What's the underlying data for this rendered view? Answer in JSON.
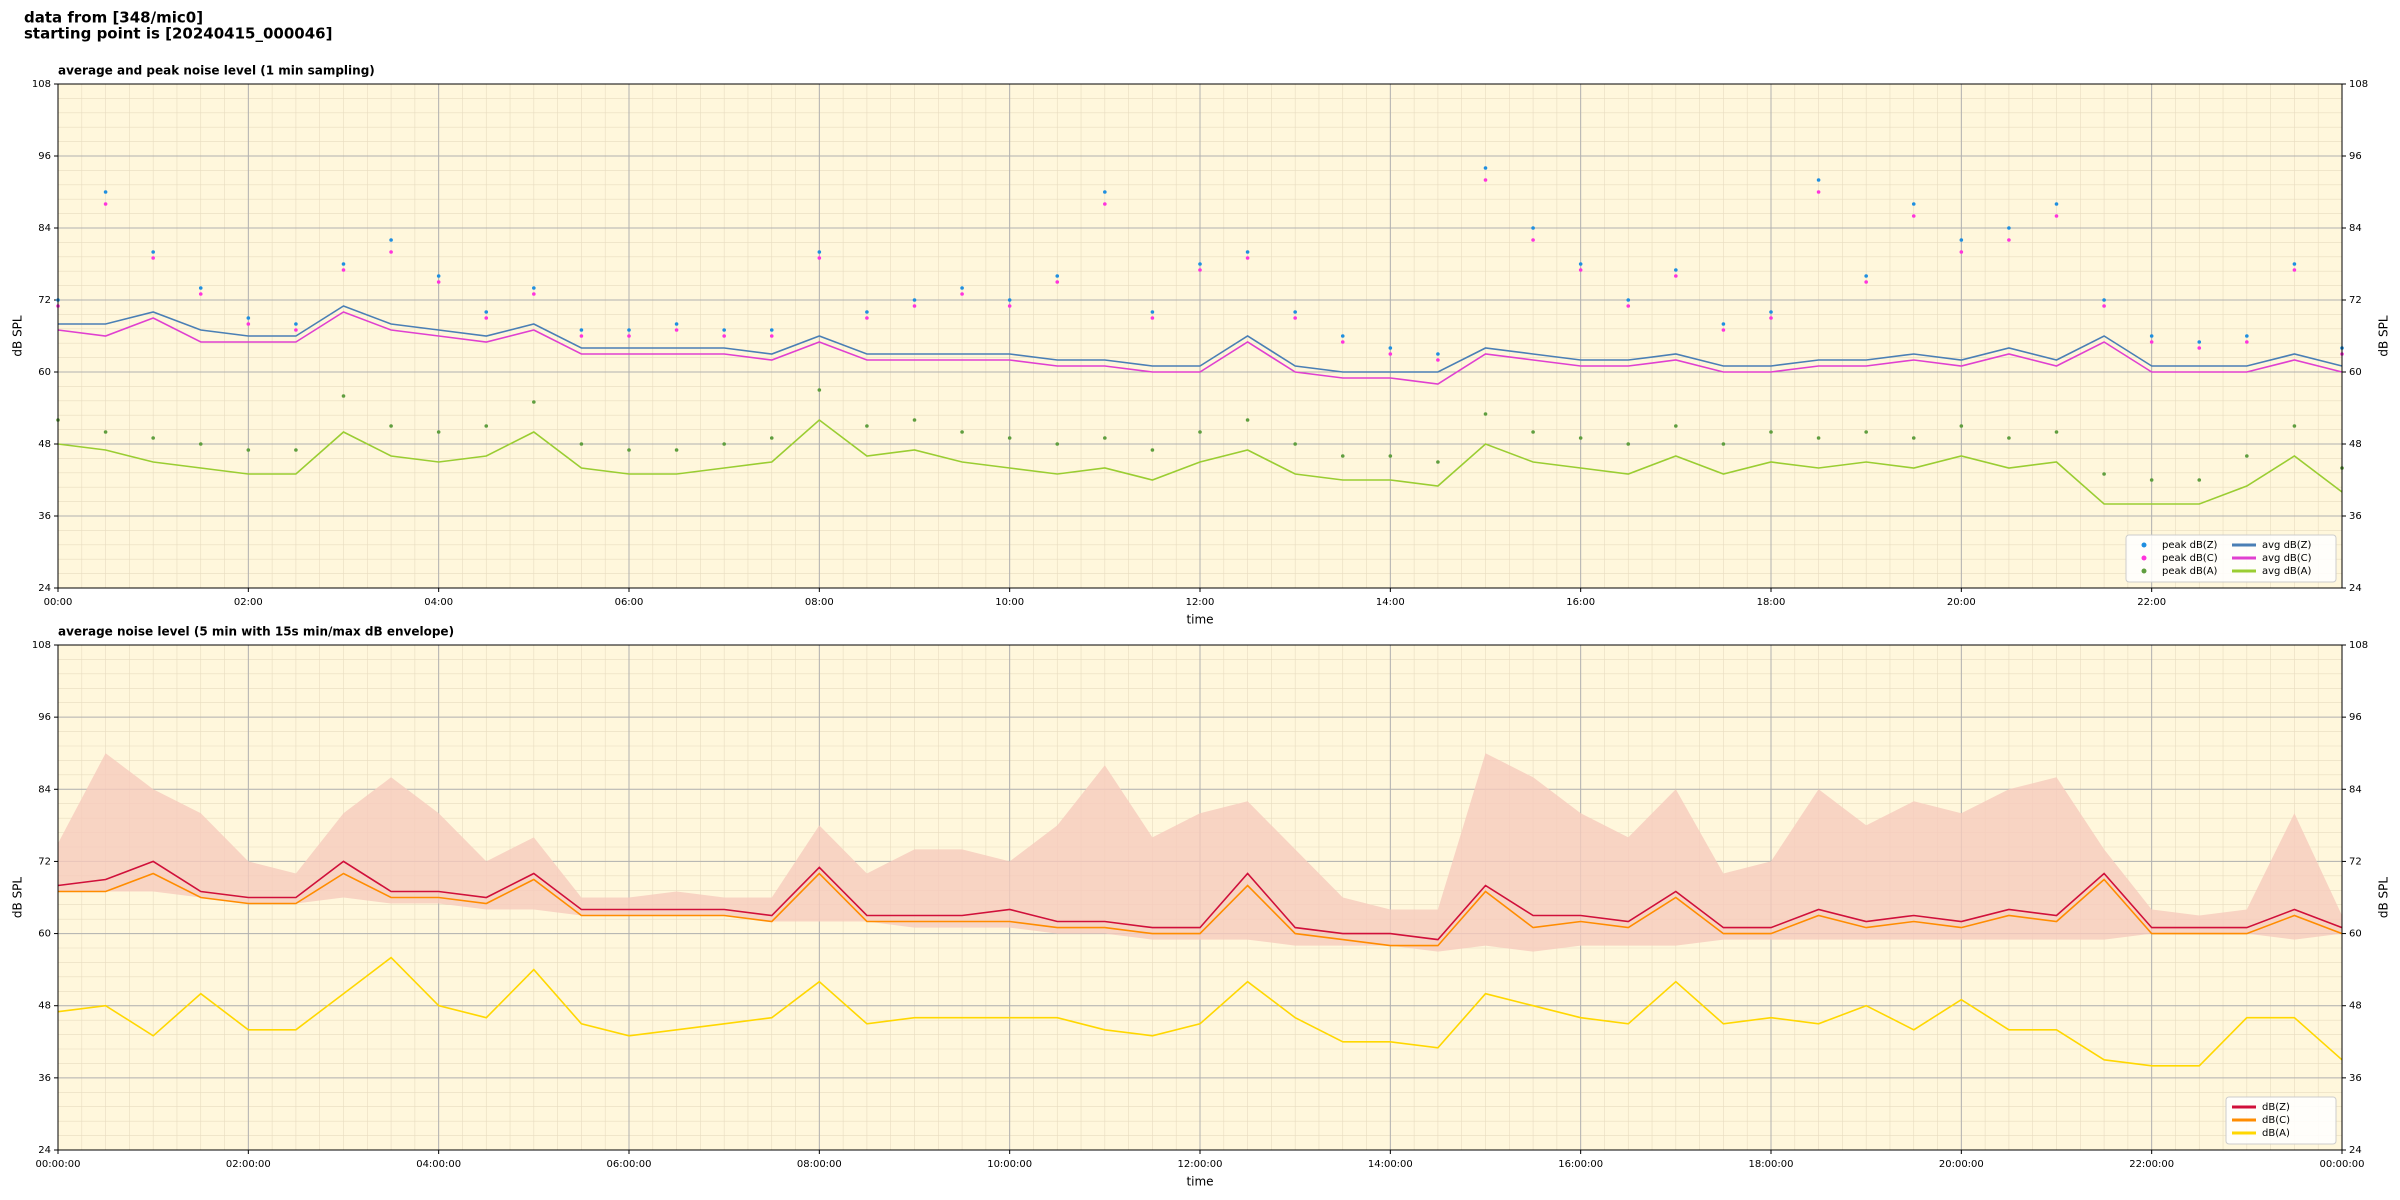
{
  "header": {
    "lines": [
      "data from [348/mic0]",
      "starting point is [20240415_000046]"
    ]
  },
  "chart_data": [
    {
      "type": "line",
      "title": "average and peak noise level (1 min sampling)",
      "x_label": "time",
      "y_label": "dB SPL",
      "xlim": [
        0,
        24
      ],
      "ylim": [
        24,
        108
      ],
      "xticks": [
        {
          "value": 0,
          "label": "00:00"
        },
        {
          "value": 2,
          "label": "02:00"
        },
        {
          "value": 4,
          "label": "04:00"
        },
        {
          "value": 6,
          "label": "06:00"
        },
        {
          "value": 8,
          "label": "08:00"
        },
        {
          "value": 10,
          "label": "10:00"
        },
        {
          "value": 12,
          "label": "12:00"
        },
        {
          "value": 14,
          "label": "14:00"
        },
        {
          "value": 16,
          "label": "16:00"
        },
        {
          "value": 18,
          "label": "18:00"
        },
        {
          "value": 20,
          "label": "20:00"
        },
        {
          "value": 22,
          "label": "22:00"
        }
      ],
      "yticks": [
        24,
        36,
        48,
        60,
        72,
        84,
        96,
        108
      ],
      "grid": true,
      "minor_grid": true,
      "background": "#fff7dc",
      "legend": "lower right",
      "legend_columns": 2,
      "x": [
        0,
        0.5,
        1,
        1.5,
        2,
        2.5,
        3,
        3.5,
        4,
        4.5,
        5,
        5.5,
        6,
        6.5,
        7,
        7.5,
        8,
        8.5,
        9,
        9.5,
        10,
        10.5,
        11,
        11.5,
        12,
        12.5,
        13,
        13.5,
        14,
        14.5,
        15,
        15.5,
        16,
        16.5,
        17,
        17.5,
        18,
        18.5,
        19,
        19.5,
        20,
        20.5,
        21,
        21.5,
        22,
        22.5,
        23,
        23.5,
        24
      ],
      "series": [
        {
          "name": "peak dB(Z)",
          "color": "#1f8fe0",
          "marker": "dot",
          "values": [
            72,
            90,
            80,
            74,
            69,
            68,
            78,
            82,
            76,
            70,
            74,
            67,
            67,
            68,
            67,
            67,
            80,
            70,
            72,
            74,
            72,
            76,
            90,
            70,
            78,
            80,
            70,
            66,
            64,
            63,
            94,
            84,
            78,
            72,
            77,
            68,
            70,
            92,
            76,
            88,
            82,
            84,
            88,
            72,
            66,
            65,
            66,
            78,
            64
          ]
        },
        {
          "name": "peak dB(C)",
          "color": "#ff33dd",
          "marker": "dot",
          "values": [
            71,
            88,
            79,
            73,
            68,
            67,
            77,
            80,
            75,
            69,
            73,
            66,
            66,
            67,
            66,
            66,
            79,
            69,
            71,
            73,
            71,
            75,
            88,
            69,
            77,
            79,
            69,
            65,
            63,
            62,
            92,
            82,
            77,
            71,
            76,
            67,
            69,
            90,
            75,
            86,
            80,
            82,
            86,
            71,
            65,
            64,
            65,
            77,
            63
          ]
        },
        {
          "name": "peak dB(A)",
          "color": "#5f9e3f",
          "marker": "dot",
          "values": [
            52,
            50,
            49,
            48,
            47,
            47,
            56,
            51,
            50,
            51,
            55,
            48,
            47,
            47,
            48,
            49,
            57,
            51,
            52,
            50,
            49,
            48,
            49,
            47,
            50,
            52,
            48,
            46,
            46,
            45,
            53,
            50,
            49,
            48,
            51,
            48,
            50,
            49,
            50,
            49,
            51,
            49,
            50,
            43,
            42,
            42,
            46,
            51,
            44
          ]
        },
        {
          "name": "avg dB(Z)",
          "color": "#4a7fb5",
          "marker": "line",
          "values": [
            68,
            68,
            70,
            67,
            66,
            66,
            71,
            68,
            67,
            66,
            68,
            64,
            64,
            64,
            64,
            63,
            66,
            63,
            63,
            63,
            63,
            62,
            62,
            61,
            61,
            66,
            61,
            60,
            60,
            60,
            64,
            63,
            62,
            62,
            63,
            61,
            61,
            62,
            62,
            63,
            62,
            64,
            62,
            66,
            61,
            61,
            61,
            63,
            61
          ]
        },
        {
          "name": "avg dB(C)",
          "color": "#e040d0",
          "marker": "line",
          "values": [
            67,
            66,
            69,
            65,
            65,
            65,
            70,
            67,
            66,
            65,
            67,
            63,
            63,
            63,
            63,
            62,
            65,
            62,
            62,
            62,
            62,
            61,
            61,
            60,
            60,
            65,
            60,
            59,
            59,
            58,
            63,
            62,
            61,
            61,
            62,
            60,
            60,
            61,
            61,
            62,
            61,
            63,
            61,
            65,
            60,
            60,
            60,
            62,
            60
          ]
        },
        {
          "name": "avg dB(A)",
          "color": "#9acd32",
          "marker": "line",
          "values": [
            48,
            47,
            45,
            44,
            43,
            43,
            50,
            46,
            45,
            46,
            50,
            44,
            43,
            43,
            44,
            45,
            52,
            46,
            47,
            45,
            44,
            43,
            44,
            42,
            45,
            47,
            43,
            42,
            42,
            41,
            48,
            45,
            44,
            43,
            46,
            43,
            45,
            44,
            45,
            44,
            46,
            44,
            45,
            38,
            38,
            38,
            41,
            46,
            40
          ]
        }
      ]
    },
    {
      "type": "line",
      "title": "average noise level (5 min with 15s min/max dB envelope)",
      "x_label": "time",
      "y_label": "dB SPL",
      "xlim": [
        0,
        24
      ],
      "ylim": [
        24,
        108
      ],
      "xticks": [
        {
          "value": 0,
          "label": "00:00:00"
        },
        {
          "value": 2,
          "label": "02:00:00"
        },
        {
          "value": 4,
          "label": "04:00:00"
        },
        {
          "value": 6,
          "label": "06:00:00"
        },
        {
          "value": 8,
          "label": "08:00:00"
        },
        {
          "value": 10,
          "label": "10:00:00"
        },
        {
          "value": 12,
          "label": "12:00:00"
        },
        {
          "value": 14,
          "label": "14:00:00"
        },
        {
          "value": 16,
          "label": "16:00:00"
        },
        {
          "value": 18,
          "label": "18:00:00"
        },
        {
          "value": 20,
          "label": "20:00:00"
        },
        {
          "value": 22,
          "label": "22:00:00"
        },
        {
          "value": 24,
          "label": "00:00:00"
        }
      ],
      "yticks": [
        24,
        36,
        48,
        60,
        72,
        84,
        96,
        108
      ],
      "grid": true,
      "minor_grid": true,
      "background": "#fff7dc",
      "legend": "lower right",
      "legend_columns": 1,
      "x": [
        0,
        0.5,
        1,
        1.5,
        2,
        2.5,
        3,
        3.5,
        4,
        4.5,
        5,
        5.5,
        6,
        6.5,
        7,
        7.5,
        8,
        8.5,
        9,
        9.5,
        10,
        10.5,
        11,
        11.5,
        12,
        12.5,
        13,
        13.5,
        14,
        14.5,
        15,
        15.5,
        16,
        16.5,
        17,
        17.5,
        18,
        18.5,
        19,
        19.5,
        20,
        20.5,
        21,
        21.5,
        22,
        22.5,
        23,
        23.5,
        24
      ],
      "envelope": {
        "color": "#f6cbbd",
        "upper": [
          75,
          90,
          84,
          80,
          72,
          70,
          80,
          86,
          80,
          72,
          76,
          66,
          66,
          67,
          66,
          66,
          78,
          70,
          74,
          74,
          72,
          78,
          88,
          76,
          80,
          82,
          74,
          66,
          64,
          64,
          90,
          86,
          80,
          76,
          84,
          70,
          72,
          84,
          78,
          82,
          80,
          84,
          86,
          74,
          64,
          63,
          64,
          80,
          63
        ],
        "lower": [
          67,
          67,
          67,
          66,
          65,
          65,
          66,
          65,
          65,
          64,
          64,
          63,
          63,
          63,
          63,
          62,
          62,
          62,
          61,
          61,
          61,
          60,
          60,
          59,
          59,
          59,
          58,
          58,
          58,
          57,
          58,
          57,
          58,
          58,
          58,
          59,
          59,
          59,
          59,
          59,
          59,
          59,
          59,
          59,
          60,
          60,
          60,
          59,
          60
        ]
      },
      "series": [
        {
          "name": "dB(Z)",
          "color": "#d0103a",
          "marker": "line",
          "values": [
            68,
            69,
            72,
            67,
            66,
            66,
            72,
            67,
            67,
            66,
            70,
            64,
            64,
            64,
            64,
            63,
            71,
            63,
            63,
            63,
            64,
            62,
            62,
            61,
            61,
            70,
            61,
            60,
            60,
            59,
            68,
            63,
            63,
            62,
            67,
            61,
            61,
            64,
            62,
            63,
            62,
            64,
            63,
            70,
            61,
            61,
            61,
            64,
            61
          ]
        },
        {
          "name": "dB(C)",
          "color": "#ff8c00",
          "marker": "line",
          "values": [
            67,
            67,
            70,
            66,
            65,
            65,
            70,
            66,
            66,
            65,
            69,
            63,
            63,
            63,
            63,
            62,
            70,
            62,
            62,
            62,
            62,
            61,
            61,
            60,
            60,
            68,
            60,
            59,
            58,
            58,
            67,
            61,
            62,
            61,
            66,
            60,
            60,
            63,
            61,
            62,
            61,
            63,
            62,
            69,
            60,
            60,
            60,
            63,
            60
          ]
        },
        {
          "name": "dB(A)",
          "color": "#ffd700",
          "marker": "line",
          "values": [
            47,
            48,
            43,
            50,
            44,
            44,
            50,
            56,
            48,
            46,
            54,
            45,
            43,
            44,
            45,
            46,
            52,
            45,
            46,
            46,
            46,
            46,
            44,
            43,
            45,
            52,
            46,
            42,
            42,
            41,
            50,
            48,
            46,
            45,
            52,
            45,
            46,
            45,
            48,
            44,
            49,
            44,
            44,
            39,
            38,
            38,
            46,
            46,
            39
          ]
        }
      ]
    }
  ]
}
